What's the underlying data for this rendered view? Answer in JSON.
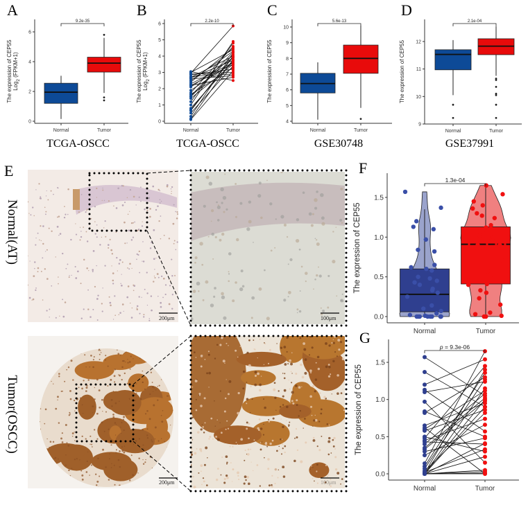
{
  "y_label": "The expression of CEP55",
  "log_label": {
    "base": "Log",
    "sub": "2",
    "rest": " (FPKM+1)"
  },
  "categories": [
    "Normal",
    "Tumor"
  ],
  "colors": {
    "normal": "#0d4a97",
    "tumor": "#e80b0b",
    "normal_f": "#2f3f8f",
    "normal_violin": "#9aa3cc",
    "tumor_violin": "#f08080",
    "tumor_f": "#f01010"
  },
  "panel_e": {
    "letter": "E",
    "row_labels": [
      "Normal(AT)",
      "Tumor(OSCC)"
    ],
    "scale_bars": [
      "200μm",
      "100μm",
      "200μm",
      "100μm"
    ]
  },
  "chart_data": [
    {
      "id": "A",
      "letter": "A",
      "type": "box",
      "dataset": "TCGA-OSCC",
      "ylabel": "The expression of CEP55 Log2 (FPKM+1)",
      "ticks": [
        0,
        2,
        4,
        6
      ],
      "p_value": "9.2e-35",
      "boxes": [
        {
          "category": "Normal",
          "min": 0.15,
          "q1": 1.2,
          "median": 1.95,
          "q3": 2.55,
          "max": 3.05,
          "outliers": []
        },
        {
          "category": "Tumor",
          "min": 1.9,
          "q1": 3.3,
          "median": 3.9,
          "q3": 4.3,
          "max": 5.6,
          "outliers": [
            1.4,
            1.6,
            5.8
          ]
        }
      ]
    },
    {
      "id": "B",
      "letter": "B",
      "type": "paired",
      "dataset": "TCGA-OSCC",
      "ylabel": "The expression of CEP55 Log2 (FPKM+1)",
      "ticks": [
        0,
        1,
        2,
        3,
        4,
        5,
        6
      ],
      "p_value": "2.2e-10",
      "normal": [
        3.05,
        2.95,
        2.85,
        2.7,
        2.6,
        2.5,
        2.3,
        2.2,
        2.1,
        1.75,
        1.65,
        1.5,
        1.4,
        1.2,
        0.8,
        0.65,
        0.5,
        0.3,
        0.15,
        0.1,
        2.75,
        2.4,
        1.9,
        1.0,
        2.9,
        3.0,
        2.65,
        1.55,
        0.7,
        2.2
      ],
      "tumor": [
        2.5,
        5.85,
        3.2,
        4.0,
        2.8,
        4.3,
        3.6,
        2.7,
        3.9,
        4.6,
        3.3,
        4.1,
        3.5,
        4.8,
        3.7,
        4.0,
        3.4,
        4.2,
        3.8,
        3.1,
        2.9,
        4.5,
        3.6,
        4.9,
        3.0,
        4.4,
        3.75,
        4.25,
        3.95,
        3.5
      ]
    },
    {
      "id": "C",
      "letter": "C",
      "type": "box",
      "dataset": "GSE30748",
      "ylabel": "The expression of CEP55",
      "ticks": [
        4,
        5,
        6,
        7,
        8,
        9,
        10
      ],
      "p_value": "5.6e-13",
      "boxes": [
        {
          "category": "Normal",
          "min": 4.1,
          "q1": 5.8,
          "median": 6.4,
          "q3": 7.05,
          "max": 7.75,
          "outliers": []
        },
        {
          "category": "Tumor",
          "min": 4.85,
          "q1": 7.05,
          "median": 8.0,
          "q3": 8.85,
          "max": 10.1,
          "outliers": [
            4.15
          ]
        }
      ]
    },
    {
      "id": "D",
      "letter": "D",
      "type": "box",
      "dataset": "GSE37991",
      "ylabel": "The expression of CEP55",
      "ticks": [
        9,
        10,
        11,
        12
      ],
      "p_value": "2.1e-04",
      "boxes": [
        {
          "category": "Normal",
          "min": 10.05,
          "q1": 10.97,
          "median": 11.53,
          "q3": 11.7,
          "max": 12.05,
          "outliers": [
            9.7,
            9.22
          ]
        },
        {
          "category": "Tumor",
          "min": 10.75,
          "q1": 11.52,
          "median": 11.83,
          "q3": 12.1,
          "max": 12.55,
          "outliers": [
            10.65,
            10.6,
            10.35,
            10.1,
            10.05,
            9.7,
            9.22
          ]
        }
      ]
    },
    {
      "id": "F",
      "letter": "F",
      "type": "violin-box",
      "ylabel": "The expression of CEP55",
      "ticks": [
        0.0,
        0.5,
        1.0,
        1.5
      ],
      "p_value": "1.3e-04",
      "boxes": [
        {
          "category": "Normal",
          "q1": 0.06,
          "median": 0.28,
          "q3": 0.6,
          "max": 1.35,
          "violin_max": 1.57
        },
        {
          "category": "Tumor",
          "q1": 0.41,
          "median": 0.91,
          "q3": 1.13,
          "max": 1.65,
          "violin_max": 1.65
        }
      ]
    },
    {
      "id": "G",
      "letter": "G",
      "type": "paired",
      "ylabel": "The expression of CEP55",
      "ticks": [
        0.0,
        0.5,
        1.0,
        1.5
      ],
      "p_label": "p",
      "p_value": " = 9.3e-06",
      "normal": [
        1.57,
        1.37,
        1.2,
        1.13,
        1.1,
        0.97,
        0.84,
        0.82,
        0.65,
        0.6,
        0.58,
        0.48,
        0.45,
        0.43,
        0.4,
        0.35,
        0.33,
        0.25,
        0.14,
        0.1,
        0.07,
        0.04,
        0.02,
        0.01,
        0,
        0,
        0,
        0,
        0,
        0,
        0,
        0,
        0.3,
        0.5,
        0.62,
        0.0
      ],
      "tumor": [
        1.05,
        0.9,
        1.54,
        0.57,
        1.24,
        0.15,
        0.5,
        1.3,
        0.95,
        1.12,
        0.86,
        1.45,
        0.74,
        0.4,
        1.08,
        1.02,
        0.98,
        0.66,
        1.65,
        1.36,
        1.27,
        0.82,
        0.33,
        1.4,
        0.23,
        0.41,
        0.05,
        0.03,
        0.01,
        0,
        0.9,
        1.15,
        0.48,
        0.3,
        0,
        1.0
      ]
    }
  ]
}
